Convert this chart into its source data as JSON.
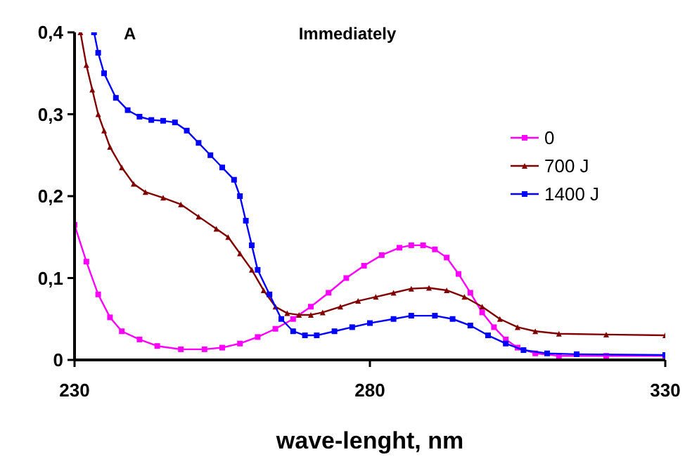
{
  "chart_data": {
    "type": "line",
    "title": "Immediately",
    "annotations": [
      "A"
    ],
    "xlabel": "wave-lenght, nm",
    "xlim": [
      230,
      330
    ],
    "xticks": [
      230,
      280,
      330
    ],
    "ylim": [
      0,
      0.4
    ],
    "yticks": [
      0,
      {
        "value": 0.1,
        "label": "0,1"
      },
      {
        "value": 0.2,
        "label": "0,2"
      },
      {
        "value": 0.3,
        "label": "0,3"
      },
      {
        "value": 0.4,
        "label": "0,4"
      }
    ],
    "grid": false,
    "legend": "right",
    "line_style": "solid",
    "series": [
      {
        "name": "0",
        "color": "#ff00ff",
        "marker": "square",
        "x": [
          230,
          232,
          234,
          236,
          238,
          241,
          244,
          248,
          252,
          255,
          258,
          261,
          264,
          267,
          270,
          273,
          276,
          279,
          282,
          285,
          287,
          289,
          291,
          293,
          295,
          297,
          299,
          301,
          303,
          305,
          308,
          312,
          320,
          330
        ],
        "values": [
          0.165,
          0.12,
          0.08,
          0.052,
          0.035,
          0.025,
          0.017,
          0.013,
          0.013,
          0.015,
          0.02,
          0.028,
          0.038,
          0.05,
          0.065,
          0.082,
          0.1,
          0.115,
          0.128,
          0.137,
          0.14,
          0.14,
          0.135,
          0.125,
          0.105,
          0.082,
          0.058,
          0.04,
          0.025,
          0.015,
          0.008,
          0.005,
          0.005,
          0.005
        ]
      },
      {
        "name": "700 J",
        "color": "#800000",
        "marker": "triangle",
        "x": [
          231,
          232,
          233,
          234,
          235,
          236,
          238,
          240,
          242,
          245,
          248,
          251,
          254,
          256,
          258,
          260,
          262,
          264,
          266,
          268,
          270,
          272,
          275,
          278,
          281,
          284,
          287,
          290,
          293,
          296,
          299,
          302,
          305,
          308,
          312,
          320,
          330
        ],
        "values": [
          0.4,
          0.36,
          0.33,
          0.3,
          0.28,
          0.26,
          0.235,
          0.215,
          0.205,
          0.198,
          0.19,
          0.175,
          0.16,
          0.15,
          0.13,
          0.11,
          0.085,
          0.065,
          0.057,
          0.055,
          0.055,
          0.058,
          0.065,
          0.072,
          0.077,
          0.082,
          0.087,
          0.088,
          0.085,
          0.077,
          0.065,
          0.05,
          0.04,
          0.035,
          0.032,
          0.031,
          0.03
        ]
      },
      {
        "name": "1400 J",
        "color": "#0000ff",
        "marker": "square",
        "x": [
          233.3,
          234,
          235,
          237,
          239,
          241,
          243,
          245,
          247,
          249,
          251,
          253,
          255,
          257,
          258,
          259,
          260,
          261,
          263,
          265,
          267,
          269,
          271,
          274,
          277,
          280,
          284,
          287,
          291,
          294,
          297,
          300,
          303,
          306,
          310,
          315,
          330
        ],
        "values": [
          0.4,
          0.375,
          0.35,
          0.32,
          0.305,
          0.297,
          0.293,
          0.292,
          0.29,
          0.28,
          0.265,
          0.25,
          0.235,
          0.22,
          0.2,
          0.17,
          0.14,
          0.11,
          0.08,
          0.05,
          0.035,
          0.03,
          0.03,
          0.035,
          0.04,
          0.045,
          0.05,
          0.054,
          0.054,
          0.05,
          0.042,
          0.03,
          0.02,
          0.012,
          0.008,
          0.007,
          0.006
        ]
      }
    ]
  }
}
